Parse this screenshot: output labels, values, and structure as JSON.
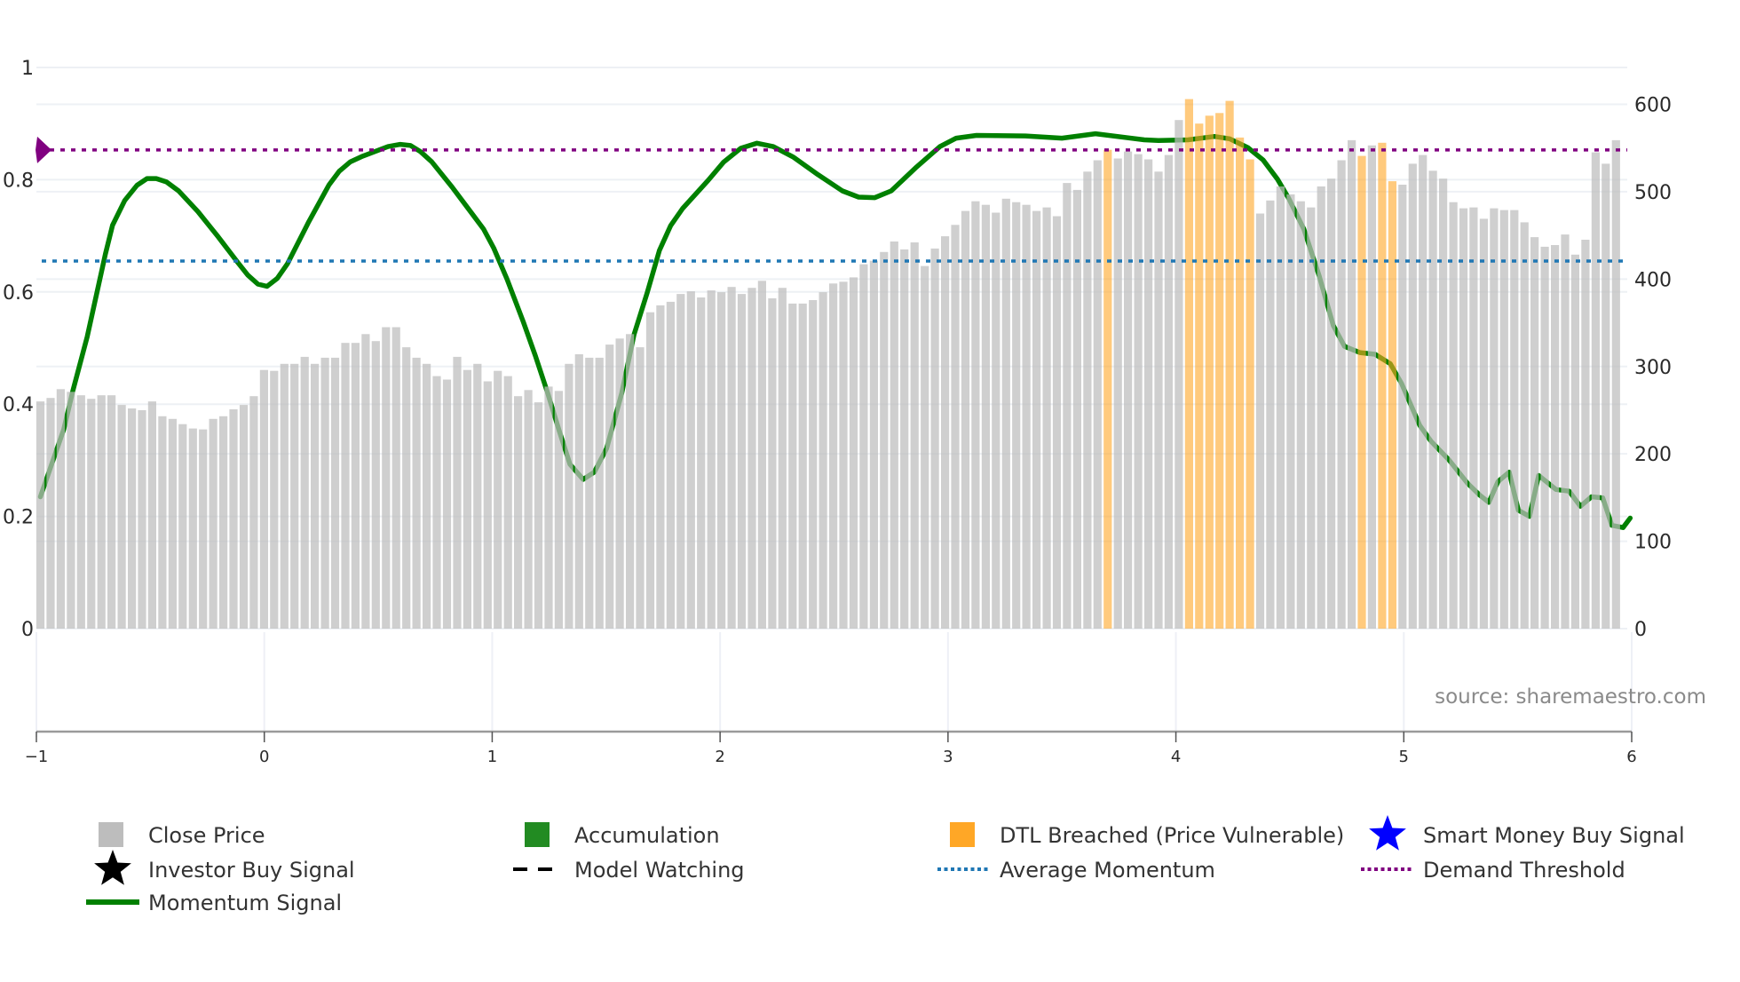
{
  "chart_data": {
    "type": "bar",
    "title": "",
    "source": "source: sharemaestro.com",
    "y_left": {
      "range": [
        0,
        1
      ],
      "ticks": [
        "0",
        "0.2",
        "0.4",
        "0.6",
        "0.8",
        "1"
      ]
    },
    "y_right": {
      "range": [
        0,
        600
      ],
      "ticks": [
        "0",
        "100",
        "200",
        "300",
        "400",
        "500",
        "600"
      ]
    },
    "x_axis": {
      "range": [
        -1,
        6
      ],
      "ticks": [
        "−1",
        "0",
        "1",
        "2",
        "3",
        "4",
        "5",
        "6"
      ]
    },
    "grid": true,
    "close_price": [
      260,
      264,
      274,
      271,
      267,
      263,
      267,
      267,
      256,
      252,
      250,
      260,
      243,
      240,
      234,
      229,
      228,
      240,
      243,
      251,
      256,
      266,
      296,
      295,
      303,
      303,
      311,
      303,
      310,
      310,
      327,
      327,
      337,
      329,
      345,
      345,
      322,
      310,
      303,
      289,
      285,
      311,
      296,
      303,
      283,
      295,
      289,
      266,
      273,
      259,
      277,
      272,
      303,
      314,
      310,
      310,
      325,
      332,
      337,
      322,
      362,
      370,
      374,
      383,
      386,
      379,
      387,
      385,
      391,
      383,
      390,
      398,
      378,
      390,
      372,
      372,
      376,
      385,
      395,
      397,
      402,
      417,
      421,
      431,
      443,
      434,
      442,
      415,
      435,
      449,
      462,
      478,
      489,
      485,
      476,
      492,
      488,
      485,
      478,
      482,
      472,
      510,
      502,
      523,
      536,
      548,
      538,
      546,
      543,
      537,
      523,
      542,
      582,
      606,
      578,
      587,
      590,
      604,
      562,
      537,
      475,
      490,
      506,
      497,
      489,
      482,
      506,
      515,
      536,
      559,
      541,
      553,
      556,
      512,
      508,
      532,
      542,
      524,
      515,
      488,
      481,
      482,
      469,
      481,
      479,
      479,
      465,
      448,
      437,
      439,
      451,
      428,
      445,
      545,
      532,
      559
    ],
    "dtl_breached_bar_indices": [
      105,
      113,
      114,
      115,
      116,
      117,
      118,
      119,
      130,
      132,
      133,
      156
    ],
    "momentum_signal": [
      [
        0,
        0.235
      ],
      [
        2.3,
        0.355
      ],
      [
        3.2,
        0.424
      ],
      [
        4.6,
        0.52
      ],
      [
        6.4,
        0.668
      ],
      [
        7.1,
        0.719
      ],
      [
        8.3,
        0.763
      ],
      [
        9.5,
        0.79
      ],
      [
        10.5,
        0.802
      ],
      [
        11.4,
        0.802
      ],
      [
        12.4,
        0.796
      ],
      [
        13.6,
        0.78
      ],
      [
        15.5,
        0.743
      ],
      [
        17.5,
        0.698
      ],
      [
        19.4,
        0.653
      ],
      [
        20.4,
        0.63
      ],
      [
        21.4,
        0.614
      ],
      [
        22.3,
        0.61
      ],
      [
        23.3,
        0.624
      ],
      [
        24.3,
        0.65
      ],
      [
        26.4,
        0.725
      ],
      [
        28.4,
        0.791
      ],
      [
        29.4,
        0.815
      ],
      [
        30.5,
        0.832
      ],
      [
        31.7,
        0.842
      ],
      [
        34.2,
        0.859
      ],
      [
        35.4,
        0.863
      ],
      [
        36.4,
        0.861
      ],
      [
        37.4,
        0.85
      ],
      [
        38.5,
        0.832
      ],
      [
        40.5,
        0.787
      ],
      [
        42.4,
        0.741
      ],
      [
        43.6,
        0.712
      ],
      [
        44.6,
        0.678
      ],
      [
        45.9,
        0.623
      ],
      [
        47.5,
        0.547
      ],
      [
        48.7,
        0.486
      ],
      [
        49.9,
        0.42
      ],
      [
        51,
        0.355
      ],
      [
        52.1,
        0.293
      ],
      [
        53.4,
        0.266
      ],
      [
        54.5,
        0.279
      ],
      [
        55.7,
        0.321
      ],
      [
        57.2,
        0.42
      ],
      [
        58.4,
        0.524
      ],
      [
        59.7,
        0.599
      ],
      [
        60.9,
        0.674
      ],
      [
        62,
        0.718
      ],
      [
        63.2,
        0.749
      ],
      [
        65.7,
        0.799
      ],
      [
        67.2,
        0.831
      ],
      [
        68.9,
        0.856
      ],
      [
        70.5,
        0.865
      ],
      [
        72.1,
        0.859
      ],
      [
        74.1,
        0.84
      ],
      [
        76.5,
        0.809
      ],
      [
        78.9,
        0.78
      ],
      [
        80.5,
        0.769
      ],
      [
        82.1,
        0.768
      ],
      [
        83.7,
        0.78
      ],
      [
        86.1,
        0.821
      ],
      [
        88.5,
        0.859
      ],
      [
        90.1,
        0.874
      ],
      [
        92.1,
        0.879
      ],
      [
        96.9,
        0.878
      ],
      [
        100.5,
        0.874
      ],
      [
        103.8,
        0.882
      ],
      [
        108.6,
        0.871
      ],
      [
        110,
        0.87
      ],
      [
        112.9,
        0.871
      ],
      [
        115.5,
        0.877
      ],
      [
        117,
        0.873
      ],
      [
        118.8,
        0.857
      ],
      [
        120.3,
        0.835
      ],
      [
        121.7,
        0.801
      ],
      [
        122.8,
        0.767
      ],
      [
        124.3,
        0.712
      ],
      [
        125.8,
        0.629
      ],
      [
        127.2,
        0.54
      ],
      [
        128.3,
        0.503
      ],
      [
        129.8,
        0.492
      ],
      [
        131.3,
        0.489
      ],
      [
        132.8,
        0.472
      ],
      [
        133.9,
        0.437
      ],
      [
        135.7,
        0.362
      ],
      [
        136.8,
        0.334
      ],
      [
        138.6,
        0.3
      ],
      [
        140.4,
        0.259
      ],
      [
        141.6,
        0.238
      ],
      [
        142.5,
        0.225
      ],
      [
        143.4,
        0.262
      ],
      [
        144.5,
        0.279
      ],
      [
        145.4,
        0.211
      ],
      [
        146.5,
        0.2
      ],
      [
        147.4,
        0.273
      ],
      [
        149.1,
        0.248
      ],
      [
        150.4,
        0.245
      ],
      [
        151.5,
        0.218
      ],
      [
        152.6,
        0.235
      ],
      [
        153.7,
        0.233
      ],
      [
        154.6,
        0.184
      ],
      [
        155.7,
        0.18
      ],
      [
        156.4,
        0.197
      ]
    ],
    "average_momentum": 0.655,
    "demand_threshold": 0.853,
    "colors": {
      "close_price": "#bdbdbd",
      "accumulation": "#228b22",
      "dtl_breached": "#ffa726",
      "smart_money": "#0000ff",
      "investor_buy": "#000000",
      "model_watching": "#000000",
      "average_momentum": "#1f77b4",
      "demand_threshold": "#800080",
      "momentum": "#008000"
    },
    "legend": [
      {
        "key": "close_price",
        "label": "Close Price"
      },
      {
        "key": "accumulation",
        "label": "Accumulation"
      },
      {
        "key": "dtl_breached",
        "label": "DTL Breached (Price Vulnerable)"
      },
      {
        "key": "smart_money",
        "label": "Smart Money Buy Signal"
      },
      {
        "key": "investor_buy",
        "label": "Investor Buy Signal"
      },
      {
        "key": "model_watching",
        "label": "Model Watching"
      },
      {
        "key": "average_momentum",
        "label": "Average Momentum"
      },
      {
        "key": "demand_threshold",
        "label": "Demand Threshold"
      },
      {
        "key": "momentum",
        "label": "Momentum Signal"
      }
    ]
  }
}
